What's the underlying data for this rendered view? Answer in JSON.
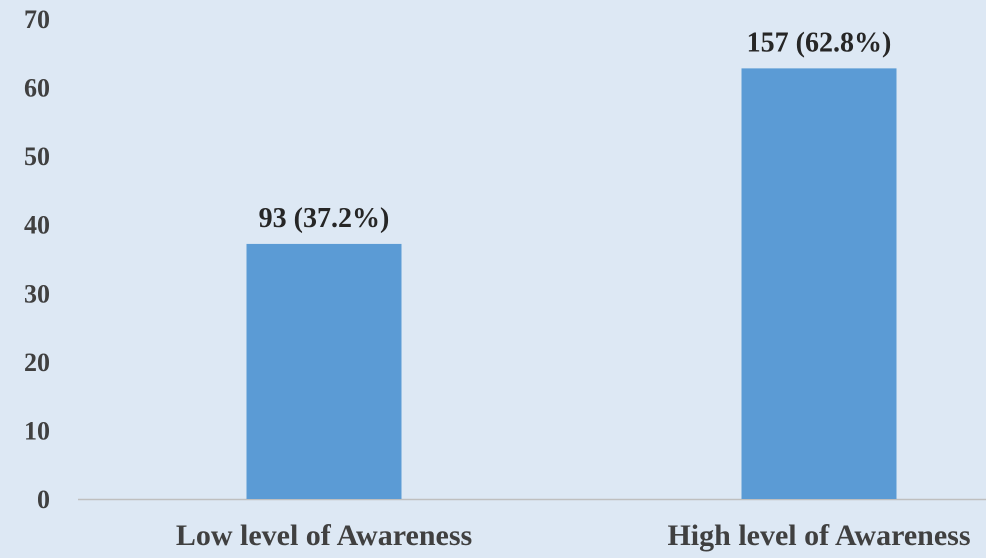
{
  "chart_data": {
    "type": "bar",
    "categories": [
      "Low level of Awareness",
      "High level of Awareness"
    ],
    "values": [
      37.2,
      62.8
    ],
    "data_labels": [
      "93 (37.2%)",
      "157 (62.8%)"
    ],
    "ylim": [
      0,
      70
    ],
    "yticks": [
      "0",
      "10",
      "20",
      "30",
      "40",
      "50",
      "60",
      "70"
    ],
    "grid": false,
    "legend": "none",
    "colors": {
      "bar": "#5b9bd5",
      "background": "#dde8f4",
      "axis": "#bfbfbf"
    }
  }
}
